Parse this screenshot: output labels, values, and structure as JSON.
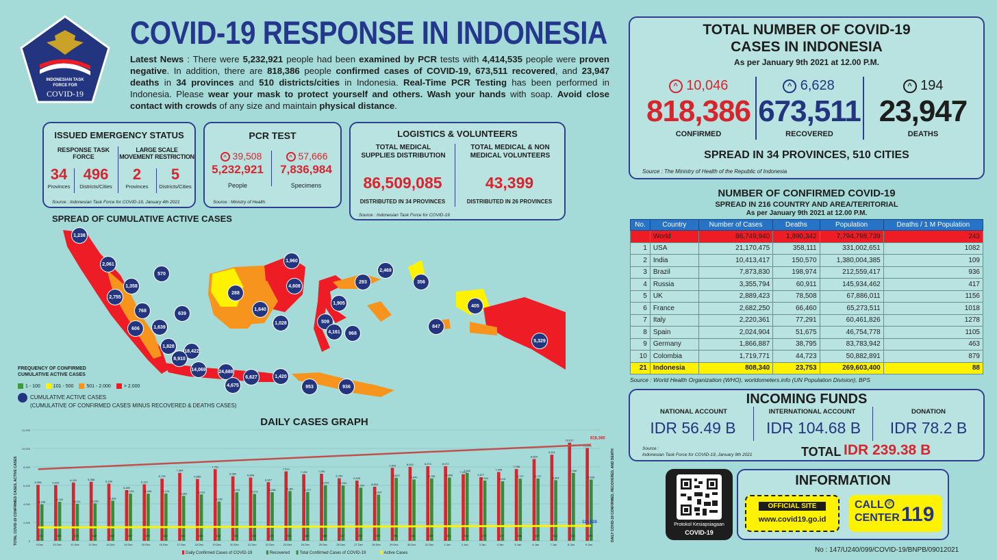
{
  "logo": {
    "line1": "INDONESIAN TASK",
    "line2": "FORCE FOR",
    "line3": "COVID-19"
  },
  "title": "COVID-19 RESPONSE IN INDONESIA",
  "news": {
    "p1": "Latest News",
    "p2": " : There were ",
    "n1": "5,232,921",
    "p3": " people had been ",
    "p4": "examined by PCR",
    "p5": " tests with ",
    "n2": "4,414,535",
    "p6": " people were ",
    "p7": "proven negative",
    "p8": ". In addition, there are ",
    "n3": "818,386",
    "p9": " people ",
    "p10": "confirmed cases of COVID-19, 673,511 recovered",
    "p11": ", and ",
    "p12": "23,947 deaths",
    "p13": " in ",
    "p14": "34 provinces",
    "p15": " and ",
    "p16": "510 districts/cities",
    "p17": " in Indonesia. ",
    "p18": "Real-Time PCR Testing",
    "p19": " has been performed in Indonesia. Please ",
    "p20": "wear your mask to protect yourself and others. Wash your hands",
    "p21": " with soap. ",
    "p22": "Avoid close contact with crowds",
    "p23": " of any size and maintain ",
    "p24": "physical distance",
    "p25": "."
  },
  "emergency": {
    "title": "ISSUED EMERGENCY STATUS",
    "col1": "RESPONSE TASK FORCE",
    "col2": "LARGE SCALE MOVEMENT RESTRICTION",
    "v1": "34",
    "l1": "Provinces",
    "v2": "496",
    "l2": "Districts/Cities",
    "v3": "2",
    "l3": "Provinces",
    "v4": "5",
    "l4": "Districts/Cities",
    "source": "Source : Indonesian Task Force for COVID-19, January 4th 2021"
  },
  "pcr": {
    "title": "PCR TEST",
    "inc1": "39,508",
    "inc2": "57,666",
    "v1": "5,232,921",
    "l1": "People",
    "v2": "7,836,984",
    "l2": "Specimens",
    "source": "Source : Ministry of Health"
  },
  "logistics": {
    "title": "LOGISTICS & VOLUNTEERS",
    "h1": "TOTAL MEDICAL SUPPLIES DISTRIBUTION",
    "h2": "TOTAL MEDICAL & NON MEDICAL VOLUNTEERS",
    "v1": "86,509,085",
    "v2": "43,399",
    "f1": "DISTRIBUTED IN 34 PROVINCES",
    "f2": "DISTRIBUTED IN 26 PROVINCES",
    "source": "Source : Indonesian Task Force for COVID-19"
  },
  "total": {
    "title1": "TOTAL NUMBER OF COVID-19",
    "title2": "CASES IN INDONESIA",
    "date": "As per January 9th 2021 at 12.00 P.M.",
    "inc1": "10,046",
    "v1": "818,386",
    "l1": "CONFIRMED",
    "inc2": "6,628",
    "v2": "673,511",
    "l2": "RECOVERED",
    "inc3": "194",
    "v3": "23,947",
    "l3": "DEATHS",
    "spread": "SPREAD IN 34 PROVINCES, 510 CITIES",
    "source": "Source : The Ministry of Health of the Republic of Indonesia"
  },
  "map": {
    "title": "SPREAD OF CUMULATIVE ACTIVE CASES",
    "legend_title1": "FREQUENCY OF CONFIRMED",
    "legend_title2": "CUMULATIVE ACTIVE CASES",
    "legend": [
      {
        "label": "1 - 100",
        "color": "#3a9d3a"
      },
      {
        "label": "101 - 500",
        "color": "#fff200"
      },
      {
        "label": "501 - 2.000",
        "color": "#f7941d"
      },
      {
        "label": "> 2.000",
        "color": "#ee1c24"
      }
    ],
    "dot_label": "CUMULATIVE ACTIVE CASES",
    "dot_note": "(CUMULATIVE OF CONFIRMED CASES MINUS RECOVERED & DEATHS CASES)",
    "dots": [
      "1,238",
      "2,061",
      "570",
      "1,358",
      "2,755",
      "768",
      "639",
      "606",
      "1,639",
      "1,828",
      "18,422",
      "8,910",
      "14,069",
      "24,688",
      "6,627",
      "4,675",
      "1,420",
      "953",
      "936",
      "288",
      "1,640",
      "1,960",
      "4,608",
      "1,028",
      "293",
      "2,469",
      "356",
      "1,905",
      "509",
      "4,161",
      "968",
      "847",
      "405",
      "5,329"
    ]
  },
  "world": {
    "title": "NUMBER OF CONFIRMED COVID-19",
    "sub": "SPREAD IN 216 COUNTRY AND AREA/TERITORIAL",
    "date": "As per January 9th 2021 at 12.00 P.M.",
    "headers": [
      "No.",
      "Country",
      "Number of Cases",
      "Deaths",
      "Population",
      "Deaths / 1 M Population"
    ],
    "rows": [
      [
        "",
        "World",
        "86,749,940",
        "1,890,342",
        "7,794,798,739",
        "243"
      ],
      [
        "1",
        "USA",
        "21,170,475",
        "358,111",
        "331,002,651",
        "1082"
      ],
      [
        "2",
        "India",
        "10,413,417",
        "150,570",
        "1,380,004,385",
        "109"
      ],
      [
        "3",
        "Brazil",
        "7,873,830",
        "198,974",
        "212,559,417",
        "936"
      ],
      [
        "4",
        "Russia",
        "3,355,794",
        "60,911",
        "145,934,462",
        "417"
      ],
      [
        "5",
        "UK",
        "2,889,423",
        "78,508",
        "67,886,011",
        "1156"
      ],
      [
        "6",
        "France",
        "2,682,250",
        "66,460",
        "65,273,511",
        "1018"
      ],
      [
        "7",
        "Italy",
        "2,220,361",
        "77,291",
        "60,461,826",
        "1278"
      ],
      [
        "8",
        "Spain",
        "2,024,904",
        "51,675",
        "46,754,778",
        "1105"
      ],
      [
        "9",
        "Germany",
        "1,866,887",
        "38,795",
        "83,783,942",
        "463"
      ],
      [
        "10",
        "Colombia",
        "1,719,771",
        "44,723",
        "50,882,891",
        "879"
      ],
      [
        "21",
        "Indonesia",
        "808,340",
        "23,753",
        "269,603,400",
        "88"
      ]
    ],
    "source": "Source : World Health Organization (WHO), worldometers.info (UN Population Division), BPS"
  },
  "funds": {
    "title": "INCOMING FUNDS",
    "h1": "NATIONAL ACCOUNT",
    "h2": "INTERNATIONAL ACCOUNT",
    "h3": "DONATION",
    "v1": "IDR 56.49 B",
    "v2": "IDR 104.68 B",
    "v3": "IDR 78.2 B",
    "src1": "Source :",
    "src2": "Indonesian Task Force for COVID-19, January 9th 2021",
    "total_label": "TOTAL",
    "total": "IDR 239.38 B"
  },
  "qr": {
    "line1": "Protokol Kesiapsiagaan",
    "line2": "COVID-19"
  },
  "info": {
    "title": "INFORMATION",
    "official": "OFFICIAL SITE",
    "url": "www.covid19.go.id",
    "call1": "CALL",
    "call2": "CENTER",
    "num": "119"
  },
  "doc_no": "No : 147/U240/099/COVID-19/BNPB/09012021",
  "chart_title": "DAILY CASES GRAPH",
  "chart_data": {
    "type": "bar",
    "ylabel": "TOTAL COVID-19 CONFIRMED CASES, ACTIVE CASES",
    "y2label": "DAILY COVID-19 CONFIRMED, RECOVERED, AND DEATH",
    "categories": [
      "9 Dec",
      "10 Dec",
      "11 Dec",
      "12 Dec",
      "13 Dec",
      "14 Dec",
      "15 Dec",
      "16 Dec",
      "17 Dec",
      "18 Dec",
      "19 Dec",
      "20 Dec",
      "21 Dec",
      "22 Dec",
      "23 Dec",
      "24 Dec",
      "25 Dec",
      "26 Dec",
      "27 Dec",
      "28 Dec",
      "29 Dec",
      "30 Dec",
      "31 Dec",
      "1 Jan",
      "2 Jan",
      "3 Jan",
      "4 Jan",
      "5 Jan",
      "6 Jan",
      "7 Jan",
      "8 Jan",
      "9 Jan"
    ],
    "ylim": [
      0,
      12000
    ],
    "series": [
      {
        "name": "Daily Confirmed Cases of COVID-19",
        "color": "#d7252e",
        "values": [
          6058,
          6033,
          6310,
          6388,
          6189,
          5489,
          6120,
          6725,
          7354,
          6689,
          7751,
          6982,
          6848,
          6347,
          7514,
          7199,
          7259,
          6769,
          6528,
          5854,
          7903,
          8002,
          8074,
          8072,
          7203,
          6877,
          7445,
          7768,
          8854,
          9321,
          10617,
          10046
        ]
      },
      {
        "name": "Recovered",
        "color": "#3a8a3a",
        "values": [
          3948,
          4220,
          4011,
          4050,
          4346,
          5103,
          5099,
          5124,
          4863,
          5018,
          4250,
          5251,
          5073,
          5258,
          5381,
          5277,
          6024,
          5994,
          5754,
          4997,
          6823,
          6640,
          6756,
          6849,
          7342,
          6524,
          6441,
          6727,
          6747,
          6564,
          7346,
          6628
        ]
      },
      {
        "name": "Active Cases",
        "color": "#fff200",
        "values": [
          171,
          166,
          175,
          142,
          165,
          137,
          155,
          143,
          142,
          136,
          146,
          221,
          143,
          172,
          161,
          168,
          168,
          147,
          243,
          223,
          251,
          241,
          194,
          191,
          226,
          179,
          177,
          198,
          187,
          224,
          233,
          194
        ]
      }
    ],
    "total_start": "592,900",
    "total_end": "818,386",
    "active_end": "120,928",
    "legend": [
      "Daily Confirmed Cases of COVID-19",
      "Recovered",
      "Total Confirmed Cases of COVID-19",
      "Active Cases"
    ]
  }
}
